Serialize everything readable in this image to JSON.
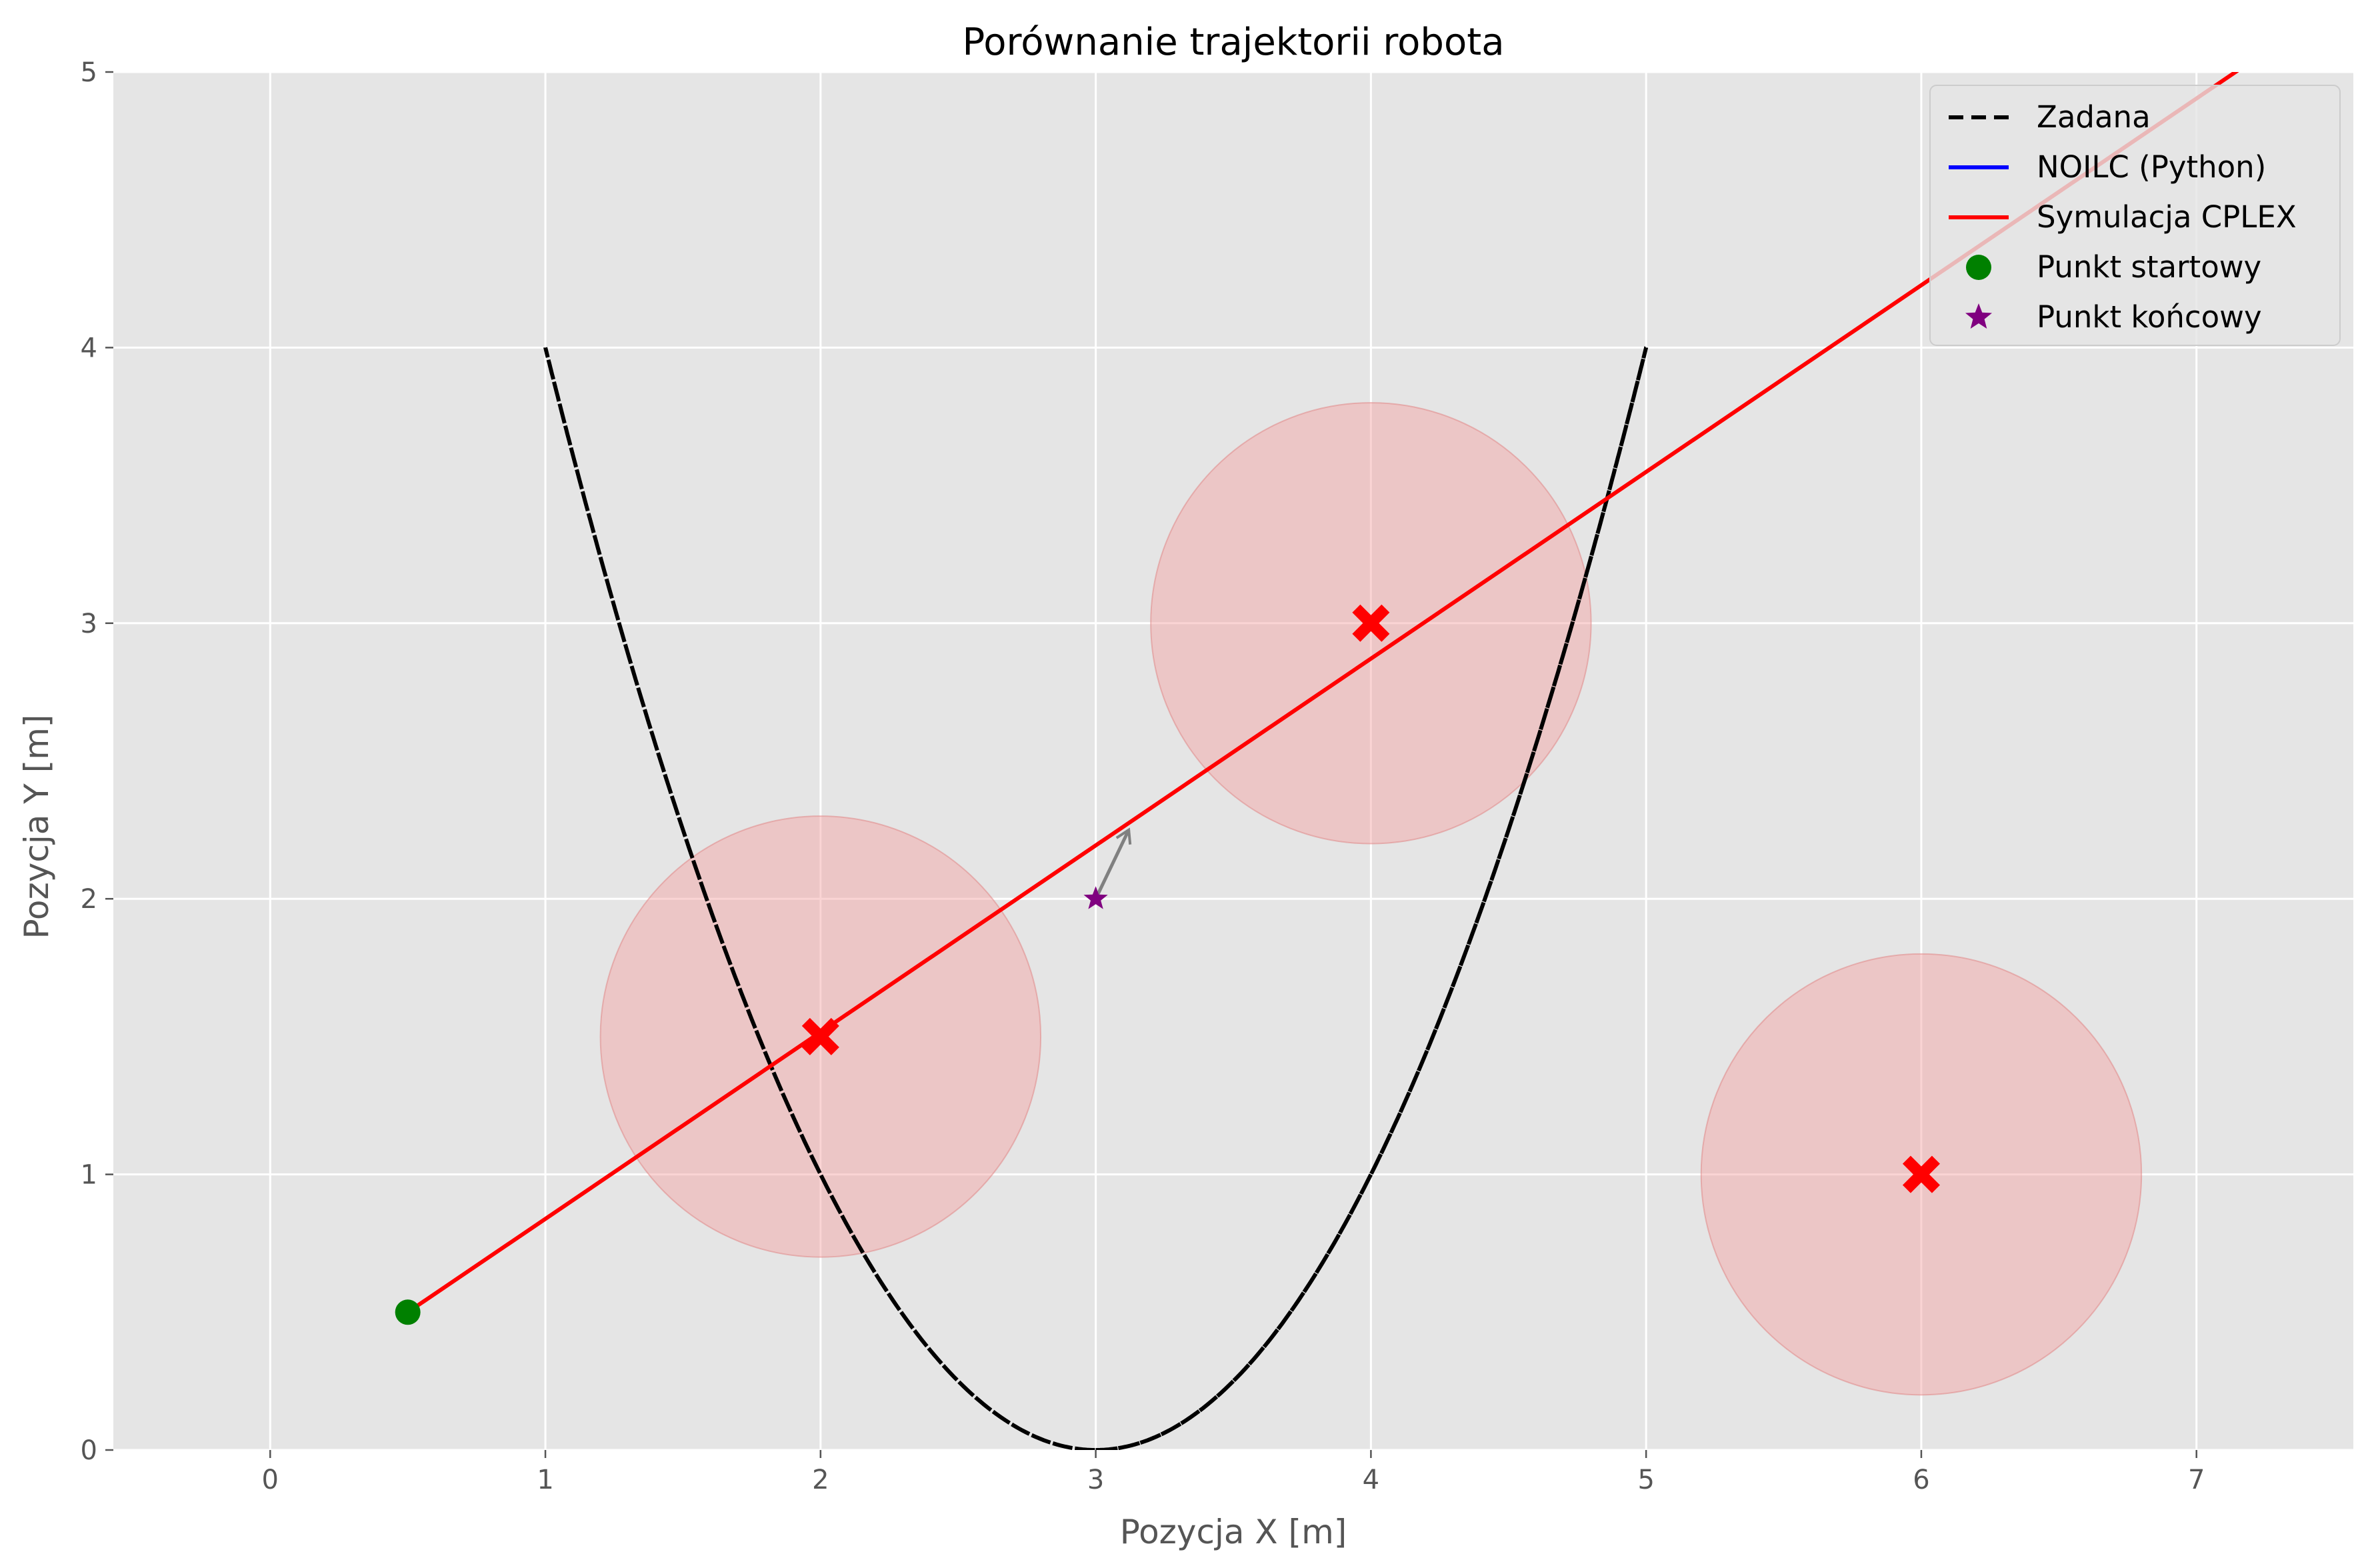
{
  "chart_data": {
    "type": "line",
    "title": "Porównanie trajektorii robota",
    "xlabel": "Pozycja X [m]",
    "ylabel": "Pozycja Y [m]",
    "xlim": [
      -0.57,
      7.57
    ],
    "ylim": [
      0,
      5
    ],
    "xticks": [
      "0",
      "1",
      "2",
      "3",
      "4",
      "5",
      "6",
      "7"
    ],
    "yticks": [
      "0",
      "1",
      "2",
      "3",
      "4",
      "5"
    ],
    "grid": true,
    "background": "#e5e5e5",
    "legend_position": "top-right",
    "series": [
      {
        "name": "Zadana",
        "style": "dashed",
        "color": "#000000",
        "shape": "figure-eight",
        "center": [
          3,
          2
        ],
        "amplitude_x": 2,
        "amplitude_y": 2
      },
      {
        "name": "NOILC (Python)",
        "style": "solid",
        "color": "#0000ff",
        "points": []
      },
      {
        "name": "Symulacja CPLEX",
        "style": "solid",
        "color": "#ff0000",
        "points": [
          [
            0.5,
            0.5
          ],
          [
            7.57,
            5.29
          ]
        ]
      }
    ],
    "start_point": {
      "name": "Punkt startowy",
      "x": 0.5,
      "y": 0.5,
      "color": "#008000",
      "marker": "circle"
    },
    "end_point": {
      "name": "Punkt końcowy",
      "x": 3,
      "y": 2,
      "color": "#800080",
      "marker": "star"
    },
    "heading_arrow": {
      "x": 3,
      "y": 2,
      "dx": 0.12,
      "dy": 0.25,
      "color": "#808080"
    },
    "obstacles": [
      {
        "x": 2,
        "y": 1.5,
        "radius": 0.8
      },
      {
        "x": 4,
        "y": 3,
        "radius": 0.8
      },
      {
        "x": 6,
        "y": 1,
        "radius": 0.8
      }
    ],
    "obstacle_fill": "#f4a0a0",
    "obstacle_marker_color": "#ff0000"
  }
}
